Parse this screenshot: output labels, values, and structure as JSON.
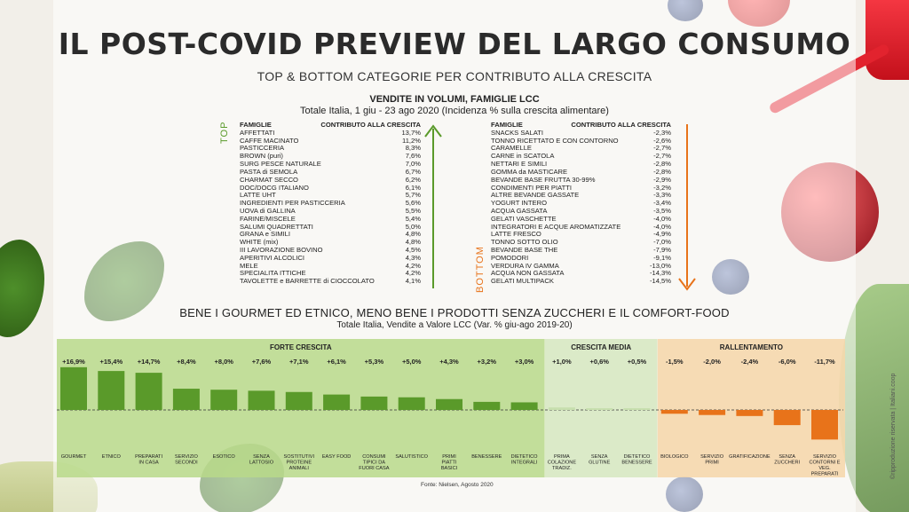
{
  "title": "IL POST-COVID PREVIEW DEL LARGO CONSUMO",
  "subtitle": "TOP & BOTTOM CATEGORIE PER CONTRIBUTO ALLA CRESCITA",
  "volume_section": {
    "title": "VENDITE IN VOLUMI, FAMIGLIE LCC",
    "subtitle": "Totale Italia, 1 giu - 23 ago 2020 (Incidenza % sulla crescita alimentare)",
    "top_label": "TOP",
    "bottom_label": "BOTTOM",
    "col_family": "FAMIGLIE",
    "col_contribution": "CONTRIBUTO ALLA CRESCITA",
    "top_color": "#5a9a2a",
    "bottom_color": "#e8731a",
    "top": [
      {
        "name": "AFFETTATI",
        "value": "13,7%"
      },
      {
        "name": "CAFFE MACINATO",
        "value": "11,2%"
      },
      {
        "name": "PASTICCERIA",
        "value": "8,3%"
      },
      {
        "name": "BROWN (puri)",
        "value": "7,6%"
      },
      {
        "name": "SURG PESCE NATURALE",
        "value": "7,0%"
      },
      {
        "name": "PASTA di SEMOLA",
        "value": "6,7%"
      },
      {
        "name": "CHARMAT SECCO",
        "value": "6,2%"
      },
      {
        "name": "DOC/DOCG ITALIANO",
        "value": "6,1%"
      },
      {
        "name": "LATTE UHT",
        "value": "5,7%"
      },
      {
        "name": "INGREDIENTI PER PASTICCERIA",
        "value": "5,6%"
      },
      {
        "name": "UOVA di GALLINA",
        "value": "5,5%"
      },
      {
        "name": "FARINE/MISCELE",
        "value": "5,4%"
      },
      {
        "name": "SALUMI QUADRETTATI",
        "value": "5,0%"
      },
      {
        "name": "GRANA e SIMILI",
        "value": "4,8%"
      },
      {
        "name": "WHITE (mix)",
        "value": "4,8%"
      },
      {
        "name": "III LAVORAZIONE BOVINO",
        "value": "4,5%"
      },
      {
        "name": "APERITIVI ALCOLICI",
        "value": "4,3%"
      },
      {
        "name": "MELE",
        "value": "4,2%"
      },
      {
        "name": "SPECIALITA ITTICHE",
        "value": "4,2%"
      },
      {
        "name": "TAVOLETTE e BARRETTE di CIOCCOLATO",
        "value": "4,1%"
      }
    ],
    "bottom": [
      {
        "name": "SNACKS SALATI",
        "value": "-2,3%"
      },
      {
        "name": "TONNO RICETTATO E CON CONTORNO",
        "value": "-2,6%"
      },
      {
        "name": "CARAMELLE",
        "value": "-2,7%"
      },
      {
        "name": "CARNE in SCATOLA",
        "value": "-2,7%"
      },
      {
        "name": "NETTARI E SIMILI",
        "value": "-2,8%"
      },
      {
        "name": "GOMMA da MASTICARE",
        "value": "-2,8%"
      },
      {
        "name": "BEVANDE BASE FRUTTA 30-99%",
        "value": "-2,9%"
      },
      {
        "name": "CONDIMENTI PER PIATTI",
        "value": "-3,2%"
      },
      {
        "name": "ALTRE BEVANDE GASSATE",
        "value": "-3,3%"
      },
      {
        "name": "YOGURT INTERO",
        "value": "-3,4%"
      },
      {
        "name": "ACQUA GASSATA",
        "value": "-3,5%"
      },
      {
        "name": "GELATI VASCHETTE",
        "value": "-4,0%"
      },
      {
        "name": "INTEGRATORI E ACQUE AROMATIZZATE",
        "value": "-4,0%"
      },
      {
        "name": "LATTE FRESCO",
        "value": "-4,9%"
      },
      {
        "name": "TONNO SOTTO OLIO",
        "value": "-7,0%"
      },
      {
        "name": "BEVANDE BASE THE",
        "value": "-7,9%"
      },
      {
        "name": "POMODORI",
        "value": "-9,1%"
      },
      {
        "name": "VERDURA IV GAMMA",
        "value": "-13,0%"
      },
      {
        "name": "ACQUA NON GASSATA",
        "value": "-14,3%"
      },
      {
        "name": "GELATI MULTIPACK",
        "value": "-14,5%"
      }
    ]
  },
  "value_section": {
    "title": "BENE  I GOURMET ED ETNICO, MENO BENE I PRODOTTI SENZA ZUCCHERI E IL COMFORT-FOOD",
    "subtitle": "Totale Italia, Vendite a Valore LCC (Var. % giu-ago 2019-20)"
  },
  "chart_data": {
    "type": "bar",
    "groups": [
      {
        "name": "FORTE CRESCITA",
        "color": "#5a9a2a",
        "panel_color": "#b9d98a"
      },
      {
        "name": "CRESCITA MEDIA",
        "color": "#c7dfae",
        "panel_color": "#d6e8bf"
      },
      {
        "name": "RALLENTAMENTO",
        "color": "#e8731a",
        "panel_color": "#f6d6a8"
      }
    ],
    "categories": [
      {
        "label": "GOURMET",
        "value": 16.9,
        "display": "+16,9%",
        "group": 0
      },
      {
        "label": "ETNICO",
        "value": 15.4,
        "display": "+15,4%",
        "group": 0
      },
      {
        "label": "PREPARATI IN CASA",
        "value": 14.7,
        "display": "+14,7%",
        "group": 0
      },
      {
        "label": "SERVIZIO SECONDI",
        "value": 8.4,
        "display": "+8,4%",
        "group": 0
      },
      {
        "label": "ESOTICO",
        "value": 8.0,
        "display": "+8,0%",
        "group": 0
      },
      {
        "label": "SENZA LATTOSIO",
        "value": 7.6,
        "display": "+7,6%",
        "group": 0
      },
      {
        "label": "SOSTITUTIVI PROTEINE ANIMALI",
        "value": 7.1,
        "display": "+7,1%",
        "group": 0
      },
      {
        "label": "EASY FOOD",
        "value": 6.1,
        "display": "+6,1%",
        "group": 0
      },
      {
        "label": "CONSUMI TIPICI DA FUORI CASA",
        "value": 5.3,
        "display": "+5,3%",
        "group": 0
      },
      {
        "label": "SALUTISTICO",
        "value": 5.0,
        "display": "+5,0%",
        "group": 0
      },
      {
        "label": "PRIMI PIATTI BASICI",
        "value": 4.3,
        "display": "+4,3%",
        "group": 0
      },
      {
        "label": "BENESSERE",
        "value": 3.2,
        "display": "+3,2%",
        "group": 0
      },
      {
        "label": "DIETETICO INTEGRALI",
        "value": 3.0,
        "display": "+3,0%",
        "group": 0
      },
      {
        "label": "PRIMA COLAZIONE TRADIZ.",
        "value": 1.0,
        "display": "+1,0%",
        "group": 1
      },
      {
        "label": "SENZA GLUTINE",
        "value": 0.6,
        "display": "+0,6%",
        "group": 1
      },
      {
        "label": "DIETETICO BENESSERE",
        "value": 0.5,
        "display": "+0,5%",
        "group": 1
      },
      {
        "label": "BIOLOGICO",
        "value": -1.5,
        "display": "-1,5%",
        "group": 2
      },
      {
        "label": "SERVIZIO PRIMI",
        "value": -2.0,
        "display": "-2,0%",
        "group": 2
      },
      {
        "label": "GRATIFICAZIONE",
        "value": -2.4,
        "display": "-2,4%",
        "group": 2
      },
      {
        "label": "SENZA ZUCCHERI",
        "value": -6.0,
        "display": "-6,0%",
        "group": 2
      },
      {
        "label": "SERVIZIO CONTORNI E VEG. PREPARATI",
        "value": -11.7,
        "display": "-11,7%",
        "group": 2
      }
    ],
    "baseline": 0,
    "grid": false
  },
  "source": "Fonte: Nielsen, Agosto 2020",
  "brand": "©ripproduzione riservata | Italiani.coop"
}
